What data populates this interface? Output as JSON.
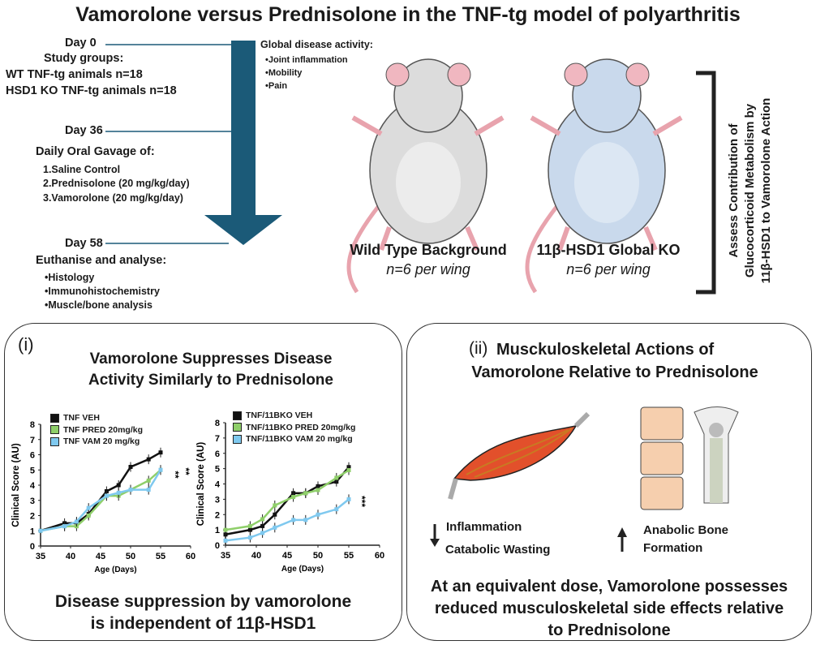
{
  "title": "Vamorolone versus Prednisolone in the TNF-tg model of polyarthritis",
  "timeline": {
    "day0": "Day 0",
    "study_groups": "Study groups:",
    "group1": "WT TNF-tg animals n=18",
    "group2": "HSD1 KO TNF-tg animals n=18",
    "day36": "Day 36",
    "gavage": "Daily Oral Gavage of:",
    "treat1": "1.Saline Control",
    "treat2": "2.Prednisolone (20 mg/kg/day)",
    "treat3": "3.Vamorolone (20 mg/kg/day)",
    "day58": "Day 58",
    "euth": "Euthanise and analyse:",
    "an1": "•Histology",
    "an2": "•Immunohistochemistry",
    "an3": "•Muscle/bone analysis"
  },
  "disease": {
    "heading": "Global disease activity:",
    "items": [
      "•Joint inflammation",
      "•Mobility",
      "•Pain"
    ]
  },
  "mice": {
    "wt_label": "Wild Type Background",
    "wt_n": "n=6 per wing",
    "ko_label": "11β-HSD1 Global KO",
    "ko_n": "n=6 per wing"
  },
  "bracket_text": [
    "Assess Contribution of",
    "Glucocorticoid Metabolism by",
    "11β-HSD1 to Vamorolone Action"
  ],
  "panel_i": {
    "num": "(i)",
    "title1": "Vamorolone Suppresses Disease",
    "title2": "Activity Similarly to Prednisolone",
    "conclusion1": "Disease suppression by vamorolone",
    "conclusion2": "is independent of 11β-HSD1"
  },
  "panel_ii": {
    "num": "(ii)",
    "title1": "Musckuloskeletal Actions of",
    "title2": "Vamorolone Relative to Prednisolone",
    "down1": "Inflammation",
    "down2": "Catabolic Wasting",
    "up1": "Anabolic Bone",
    "up2": "Formation",
    "conclusion": [
      "At an equivalent dose, Vamorolone possesses",
      "reduced musculoskeletal side effects relative",
      "to Prednisolone"
    ]
  },
  "colors": {
    "arrow": "#1b5a78",
    "veh": "#111111",
    "pred": "#8fcf6a",
    "vam": "#7fc9ef",
    "mouse_wt": "#dcdcdc",
    "mouse_ko": "#c9d9ec"
  },
  "chart_data": [
    {
      "type": "line",
      "xlabel": "Age (Days)",
      "ylabel": "Clinical Score (AU)",
      "xlim": [
        35,
        60
      ],
      "ylim": [
        0,
        8
      ],
      "xticks": [
        "35",
        "40",
        "45",
        "50",
        "55",
        "60"
      ],
      "yticks": [
        "0",
        "1",
        "2",
        "3",
        "4",
        "5",
        "6",
        "7",
        "8"
      ],
      "x": [
        35,
        39,
        41,
        43,
        46,
        48,
        50,
        53,
        55
      ],
      "series": [
        {
          "name": "TNF VEH",
          "color": "#111111",
          "values": [
            1,
            1.5,
            1.5,
            2.1,
            3.6,
            4.0,
            5.2,
            5.7,
            6.15
          ]
        },
        {
          "name": "TNF PRED 20mg/kg",
          "color": "#8fcf6a",
          "values": [
            1,
            1.3,
            1.3,
            2.0,
            3.3,
            3.3,
            3.7,
            4.3,
            5.0
          ]
        },
        {
          "name": "TNF VAM 20 mg/kg",
          "color": "#7fc9ef",
          "values": [
            1,
            1.3,
            1.6,
            2.5,
            3.3,
            3.5,
            3.7,
            3.7,
            5.0
          ]
        }
      ],
      "annotations": [
        "**",
        "**"
      ]
    },
    {
      "type": "line",
      "xlabel": "Age (Days)",
      "ylabel": "Clinical Score (AU)",
      "xlim": [
        35,
        60
      ],
      "ylim": [
        0,
        8
      ],
      "xticks": [
        "35",
        "40",
        "45",
        "50",
        "55",
        "60"
      ],
      "yticks": [
        "0",
        "1",
        "2",
        "3",
        "4",
        "5",
        "6",
        "7",
        "8"
      ],
      "x": [
        35,
        39,
        41,
        43,
        46,
        48,
        50,
        53,
        55
      ],
      "series": [
        {
          "name": "TNF/11BKO VEH",
          "color": "#111111",
          "values": [
            0.7,
            1.0,
            1.25,
            2.0,
            3.4,
            3.4,
            3.85,
            4.15,
            5.1
          ]
        },
        {
          "name": "TNF/11BKO PRED 20mg/kg",
          "color": "#8fcf6a",
          "values": [
            1.0,
            1.25,
            1.7,
            2.6,
            3.15,
            3.4,
            3.6,
            4.4,
            4.9
          ]
        },
        {
          "name": "TNF/11BKO VAM 20 mg/kg",
          "color": "#7fc9ef",
          "values": [
            0.3,
            0.5,
            0.8,
            1.15,
            1.65,
            1.65,
            2.0,
            2.35,
            3.0
          ]
        }
      ],
      "annotations": [
        "***"
      ]
    }
  ]
}
